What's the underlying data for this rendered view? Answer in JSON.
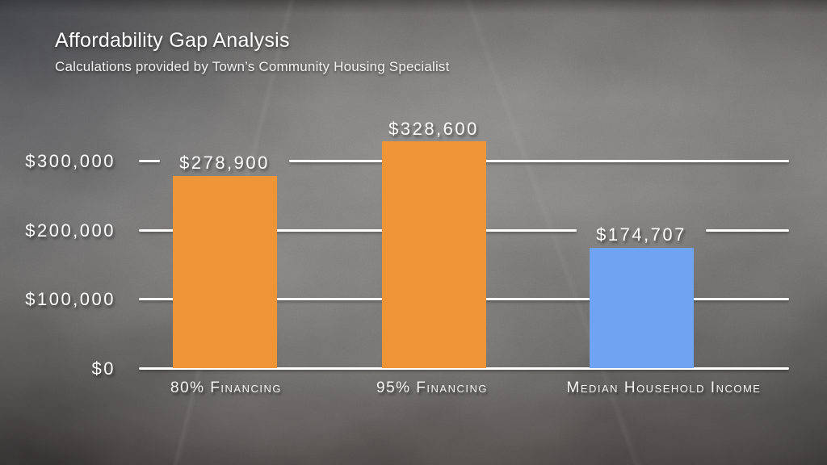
{
  "chart_data": {
    "type": "bar",
    "title": "Affordability Gap Analysis",
    "subtitle": "Calculations provided by Town’s Community Housing Specialist",
    "categories": [
      "80% Financing",
      "95% Financing",
      "Median Household Income"
    ],
    "values": [
      278900,
      328600,
      174707
    ],
    "value_labels": [
      "$278,900",
      "$328,600",
      "$174,707"
    ],
    "bar_colors": [
      "#EE9637",
      "#EE9637",
      "#71A3F3"
    ],
    "yticks": [
      {
        "value": 0,
        "label": "$0"
      },
      {
        "value": 100000,
        "label": "$100,000"
      },
      {
        "value": 200000,
        "label": "$200,000"
      },
      {
        "value": 300000,
        "label": "$300,000"
      }
    ],
    "ylim": [
      0,
      350000
    ],
    "xlabel": "",
    "ylabel": "",
    "grid": true,
    "legend": "none",
    "colors": {
      "grid_and_text": "#FFFFFF",
      "orange_bar": "#EE9637",
      "blue_bar": "#71A3F3",
      "background": "#706E6C"
    }
  }
}
